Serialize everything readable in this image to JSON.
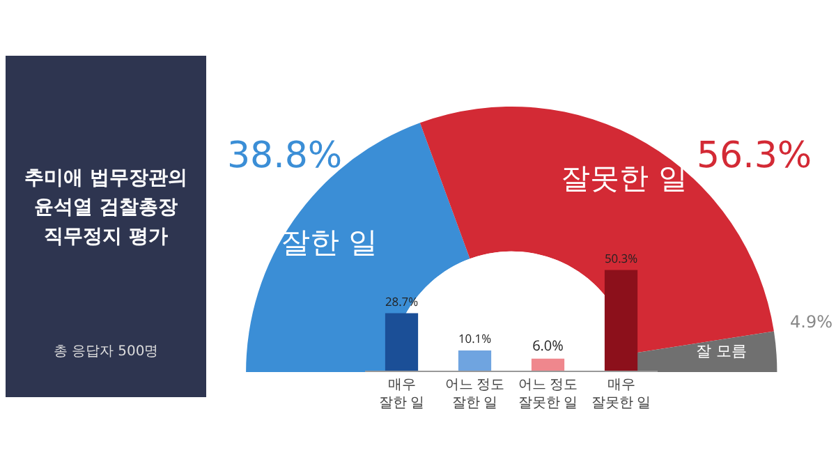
{
  "chart_data": [
    {
      "type": "donut",
      "title": "추미애 법무장관의\n윤석열 검찰총장\n직무정지 평가",
      "annotations": [
        "총 응답자 500명"
      ],
      "categories": [
        "잘한 일",
        "잘못한 일",
        "잘 모름"
      ],
      "values": [
        38.8,
        56.3,
        4.9
      ],
      "colors": [
        "#3b8ed6",
        "#d32a35",
        "#707070"
      ],
      "value_labels": [
        "38.8%",
        "56.3%",
        "4.9%"
      ]
    },
    {
      "type": "bar",
      "categories": [
        "매우\n잘한 일",
        "어느 정도\n잘한 일",
        "어느 정도\n잘못한 일",
        "매우\n잘못한 일"
      ],
      "values": [
        28.7,
        10.1,
        6.0,
        50.3
      ],
      "colors": [
        "#1b4f97",
        "#6fa4e0",
        "#ef878d",
        "#8c101b"
      ],
      "value_labels": [
        "28.7%",
        "10.1%",
        "6.0%",
        "50.3%"
      ]
    }
  ]
}
